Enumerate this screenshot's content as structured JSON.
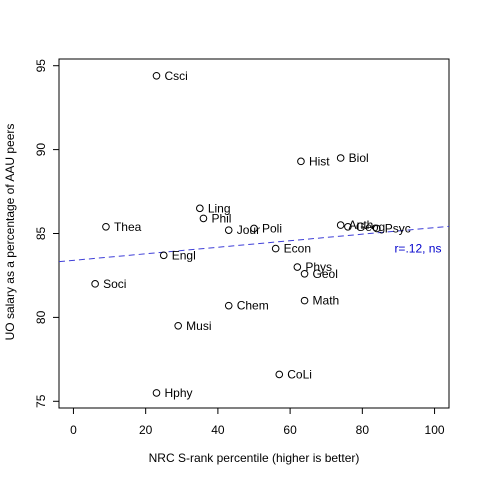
{
  "chart_data": {
    "type": "scatter",
    "xlabel": "NRC S-rank percentile (higher is better)",
    "ylabel": "UO salary as a percentage of AAU peers",
    "xlim": [
      -4,
      104
    ],
    "ylim": [
      74.6,
      95.4
    ],
    "xticks": [
      0,
      20,
      40,
      60,
      80,
      100
    ],
    "yticks": [
      75,
      80,
      85,
      90,
      95
    ],
    "points": [
      {
        "label": "Csci",
        "x": 23,
        "y": 94.4
      },
      {
        "label": "Hist",
        "x": 63,
        "y": 89.3
      },
      {
        "label": "Biol",
        "x": 74,
        "y": 89.5
      },
      {
        "label": "Ling",
        "x": 35,
        "y": 86.5
      },
      {
        "label": "Phil",
        "x": 36,
        "y": 85.9
      },
      {
        "label": "Jour",
        "x": 43,
        "y": 85.2
      },
      {
        "label": "Poli",
        "x": 50,
        "y": 85.3
      },
      {
        "label": "Thea",
        "x": 9,
        "y": 85.4
      },
      {
        "label": "Anth",
        "x": 74,
        "y": 85.5
      },
      {
        "label": "Psyc",
        "x": 84,
        "y": 85.3
      },
      {
        "label": "Geog",
        "x": 76,
        "y": 85.4
      },
      {
        "label": "Econ",
        "x": 56,
        "y": 84.1
      },
      {
        "label": "Engl",
        "x": 25,
        "y": 83.7
      },
      {
        "label": "Phys",
        "x": 62,
        "y": 83.0
      },
      {
        "label": "Geol",
        "x": 64,
        "y": 82.6
      },
      {
        "label": "Soci",
        "x": 6,
        "y": 82.0
      },
      {
        "label": "Math",
        "x": 64,
        "y": 81.0
      },
      {
        "label": "Chem",
        "x": 43,
        "y": 80.7
      },
      {
        "label": "Musi",
        "x": 29,
        "y": 79.5
      },
      {
        "label": "CoLi",
        "x": 57,
        "y": 76.6
      },
      {
        "label": "Hphy",
        "x": 23,
        "y": 75.5
      }
    ],
    "trend_line": {
      "intercept": 83.4,
      "slope": 0.0195,
      "color": "#3f3fd8"
    },
    "annotation": {
      "text": "r=.12, ns",
      "color": "#0000cc",
      "x": 90,
      "y": 84.0
    }
  }
}
